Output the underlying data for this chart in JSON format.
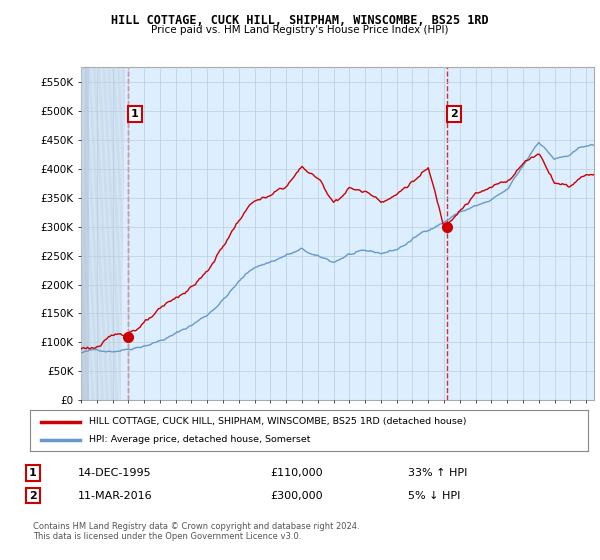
{
  "title": "HILL COTTAGE, CUCK HILL, SHIPHAM, WINSCOMBE, BS25 1RD",
  "subtitle": "Price paid vs. HM Land Registry's House Price Index (HPI)",
  "ylabel_ticks": [
    "£0",
    "£50K",
    "£100K",
    "£150K",
    "£200K",
    "£250K",
    "£300K",
    "£350K",
    "£400K",
    "£450K",
    "£500K",
    "£550K"
  ],
  "ytick_vals": [
    0,
    50000,
    100000,
    150000,
    200000,
    250000,
    300000,
    350000,
    400000,
    450000,
    500000,
    550000
  ],
  "ylim": [
    0,
    575000
  ],
  "xlim_start": 1993.0,
  "xlim_end": 2025.5,
  "sale1_x": 1995.96,
  "sale1_y": 110000,
  "sale1_label": "1",
  "sale1_annotation": "14-DEC-1995",
  "sale1_price": "£110,000",
  "sale1_hpi": "33% ↑ HPI",
  "sale2_x": 2016.17,
  "sale2_y": 300000,
  "sale2_label": "2",
  "sale2_annotation": "11-MAR-2016",
  "sale2_price": "£300,000",
  "sale2_hpi": "5% ↓ HPI",
  "legend_line1": "HILL COTTAGE, CUCK HILL, SHIPHAM, WINSCOMBE, BS25 1RD (detached house)",
  "legend_line2": "HPI: Average price, detached house, Somerset",
  "footer": "Contains HM Land Registry data © Crown copyright and database right 2024.\nThis data is licensed under the Open Government Licence v3.0.",
  "line_color_red": "#cc0000",
  "line_color_blue": "#6699cc",
  "dot_color": "#cc0000",
  "marker_label_box_color": "#cc0000",
  "chart_bg_color": "#ddeeff",
  "hatch_bg_color": "#c8d8e8",
  "background_color": "#ffffff",
  "grid_color": "#bbccdd",
  "x_tick_years": [
    1993,
    1994,
    1995,
    1996,
    1997,
    1998,
    1999,
    2000,
    2001,
    2002,
    2003,
    2004,
    2005,
    2006,
    2007,
    2008,
    2009,
    2010,
    2011,
    2012,
    2013,
    2014,
    2015,
    2016,
    2017,
    2018,
    2019,
    2020,
    2021,
    2022,
    2023,
    2024,
    2025
  ]
}
